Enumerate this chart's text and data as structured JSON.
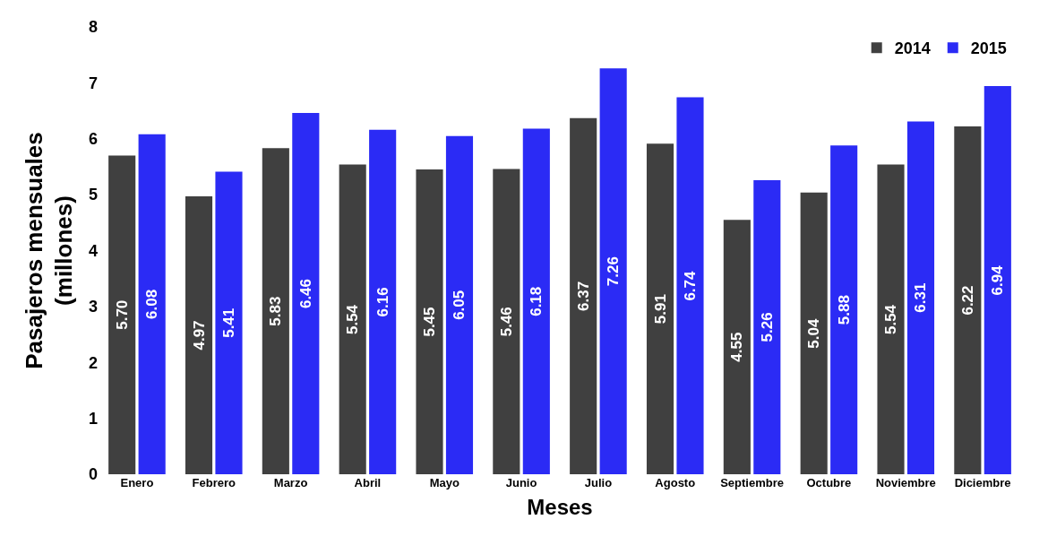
{
  "chart_data": {
    "type": "bar",
    "xlabel": "Meses",
    "ylabel": "Pasajeros mensuales\n(millones)",
    "categories": [
      "Enero",
      "Febrero",
      "Marzo",
      "Abril",
      "Mayo",
      "Junio",
      "Julio",
      "Agosto",
      "Septiembre",
      "Octubre",
      "Noviembre",
      "Diciembre"
    ],
    "series": [
      {
        "name": "2014",
        "color": "#404040",
        "values": [
          5.7,
          4.97,
          5.83,
          5.54,
          5.45,
          5.46,
          6.37,
          5.91,
          4.55,
          5.04,
          5.54,
          6.22
        ],
        "value_labels": [
          "5.70",
          "4.97",
          "5.83",
          "5.54",
          "5.45",
          "5.46",
          "6.37",
          "5.91",
          "4.55",
          "5.04",
          "5.54",
          "6.22"
        ]
      },
      {
        "name": "2015",
        "color": "#2b2bf5",
        "values": [
          6.08,
          5.41,
          6.46,
          6.16,
          6.05,
          6.18,
          7.26,
          6.74,
          5.26,
          5.88,
          6.31,
          6.94
        ],
        "value_labels": [
          "6.08",
          "5.41",
          "6.46",
          "6.16",
          "6.05",
          "6.18",
          "7.26",
          "6.74",
          "5.26",
          "5.88",
          "6.31",
          "6.94"
        ]
      }
    ],
    "ylim": [
      0,
      8
    ],
    "yticks": [
      0,
      1,
      2,
      3,
      4,
      5,
      6,
      7,
      8
    ],
    "legend": "top right"
  }
}
